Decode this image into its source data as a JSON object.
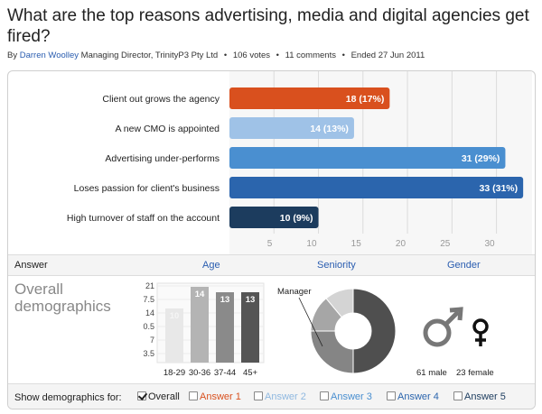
{
  "title": "What are the top reasons advertising, media and digital agencies get fired?",
  "byline": {
    "by": "By",
    "author": "Darren Woolley",
    "role": "Managing Director, TrinityP3 Pty Ltd",
    "votes": "106 votes",
    "comments": "11 comments",
    "ended": "Ended 27 Jun 2011"
  },
  "chart_data": [
    {
      "type": "bar",
      "orientation": "horizontal",
      "categories": [
        "Client out grows the agency",
        "A new CMO is appointed",
        "Advertising under-performs",
        "Loses passion for client's business",
        "High turnover of staff on the account"
      ],
      "values": [
        18,
        14,
        31,
        33,
        10
      ],
      "data_labels": [
        "18 (17%)",
        "14 (13%)",
        "31 (29%)",
        "33 (31%)",
        "10 (9%)"
      ],
      "colors": [
        "#d9501e",
        "#9fc2e7",
        "#4a8fd0",
        "#2b65ad",
        "#1c3c5e"
      ],
      "xlim": [
        0,
        34
      ],
      "ticks": [
        5,
        10,
        15,
        20,
        25,
        30
      ],
      "grid": true
    },
    {
      "type": "bar",
      "title": "Age",
      "categories": [
        "18-29",
        "30-36",
        "37-44",
        "45+"
      ],
      "values": [
        10,
        14,
        13,
        13
      ],
      "data_labels": [
        "10",
        "14",
        "13",
        "13"
      ],
      "colors": [
        "#e8e8e8",
        "#b4b4b4",
        "#8a8a8a",
        "#555555"
      ],
      "tick_labels": [
        "21",
        "7.5",
        "14",
        "0.5",
        "7",
        "3.5"
      ]
    },
    {
      "type": "pie",
      "title": "Seniority",
      "donut": true,
      "annotation": "Manager",
      "slices": [
        {
          "value": 50,
          "color": "#4f4f4f"
        },
        {
          "value": 25,
          "color": "#858585"
        },
        {
          "value": 14,
          "color": "#a6a6a6"
        },
        {
          "value": 11,
          "color": "#d4d4d4"
        }
      ]
    },
    {
      "type": "bar",
      "title": "Gender",
      "categories": [
        "male",
        "female"
      ],
      "values": [
        61,
        23
      ],
      "data_labels": [
        "61 male",
        "23 female"
      ]
    }
  ],
  "header": {
    "answer": "Answer",
    "age": "Age",
    "seniority": "Seniority",
    "gender": "Gender"
  },
  "overall": {
    "line1": "Overall",
    "line2": "demographics"
  },
  "footer": {
    "label": "Show demographics for:",
    "options": [
      {
        "label": "Overall",
        "color": "#222222",
        "checked": true
      },
      {
        "label": "Answer 1",
        "color": "#d9501e",
        "checked": false
      },
      {
        "label": "Answer 2",
        "color": "#8fb8e0",
        "checked": false
      },
      {
        "label": "Answer 3",
        "color": "#4a8fd0",
        "checked": false
      },
      {
        "label": "Answer 4",
        "color": "#2b65ad",
        "checked": false
      },
      {
        "label": "Answer 5",
        "color": "#1c3c5e",
        "checked": false
      }
    ]
  }
}
